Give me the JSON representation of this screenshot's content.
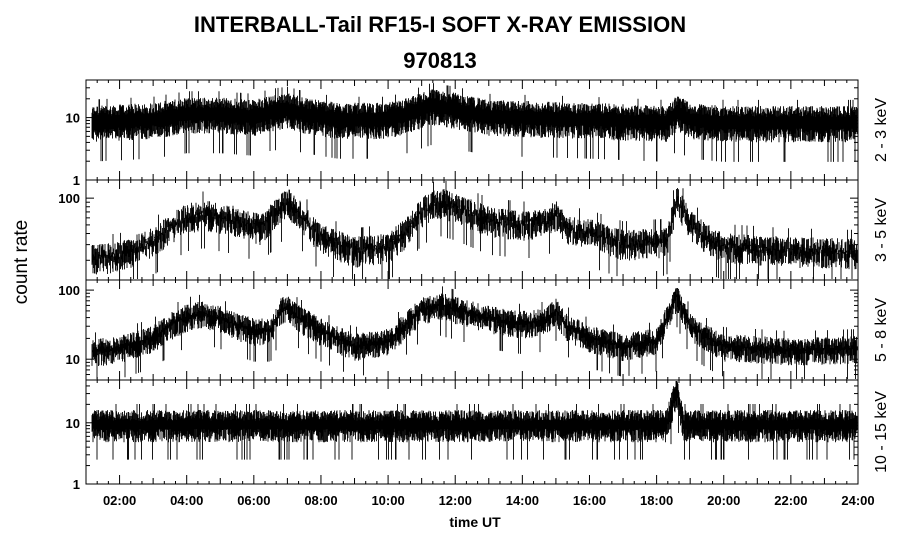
{
  "chart_data": {
    "type": "line",
    "title": "INTERBALL-Tail RF15-I SOFT X-RAY EMISSION",
    "subtitle": "970813",
    "xlabel": "time UT",
    "ylabel": "count rate",
    "x_range_hours": [
      1,
      24
    ],
    "x_ticks": [
      2,
      4,
      6,
      8,
      10,
      12,
      14,
      16,
      18,
      20,
      22,
      24
    ],
    "x_tick_labels": [
      "02:00",
      "04:00",
      "06:00",
      "08:00",
      "10:00",
      "12:00",
      "14:00",
      "16:00",
      "18:00",
      "20:00",
      "22:00",
      "24:00"
    ],
    "y_scale": "log",
    "grid": false,
    "panels": [
      {
        "band": "2 - 3 keV",
        "ylim": [
          1,
          40
        ],
        "y_tick_labels": [
          {
            "value": 1,
            "label": "1"
          },
          {
            "value": 10,
            "label": "10"
          }
        ],
        "noise_factor": 1.6,
        "envelope": [
          [
            1,
            8
          ],
          [
            3,
            9
          ],
          [
            4,
            11
          ],
          [
            5,
            11
          ],
          [
            6,
            10
          ],
          [
            6.5,
            12
          ],
          [
            7,
            13
          ],
          [
            7.5,
            11
          ],
          [
            8.5,
            9
          ],
          [
            10,
            9
          ],
          [
            10.8,
            12
          ],
          [
            11.3,
            15
          ],
          [
            12,
            13
          ],
          [
            13,
            10
          ],
          [
            16,
            9
          ],
          [
            18.3,
            8
          ],
          [
            18.6,
            12
          ],
          [
            19,
            9
          ],
          [
            20,
            8
          ],
          [
            24,
            8
          ]
        ]
      },
      {
        "band": "3 - 5 keV",
        "ylim": [
          12,
          160
        ],
        "y_tick_labels": [
          {
            "value": 100,
            "label": "100"
          }
        ],
        "noise_factor": 1.22,
        "envelope": [
          [
            1,
            20
          ],
          [
            2,
            22
          ],
          [
            3,
            32
          ],
          [
            3.5,
            45
          ],
          [
            4,
            60
          ],
          [
            4.5,
            65
          ],
          [
            5,
            60
          ],
          [
            5.5,
            55
          ],
          [
            6.2,
            45
          ],
          [
            6.8,
            75
          ],
          [
            7,
            90
          ],
          [
            7.3,
            70
          ],
          [
            8,
            35
          ],
          [
            9,
            25
          ],
          [
            10,
            28
          ],
          [
            10.5,
            40
          ],
          [
            11,
            70
          ],
          [
            11.5,
            90
          ],
          [
            12,
            80
          ],
          [
            13,
            55
          ],
          [
            14,
            50
          ],
          [
            14.7,
            52
          ],
          [
            15,
            65
          ],
          [
            15.3,
            45
          ],
          [
            16,
            40
          ],
          [
            17,
            30
          ],
          [
            18.3,
            32
          ],
          [
            18.6,
            95
          ],
          [
            19,
            50
          ],
          [
            19.5,
            35
          ],
          [
            20,
            28
          ],
          [
            22,
            25
          ],
          [
            24,
            24
          ]
        ]
      },
      {
        "band": "5 - 8 keV",
        "ylim": [
          5,
          140
        ],
        "y_tick_labels": [
          {
            "value": 10,
            "label": "10"
          },
          {
            "value": 100,
            "label": "100"
          }
        ],
        "noise_factor": 1.3,
        "envelope": [
          [
            1,
            12
          ],
          [
            2,
            14
          ],
          [
            3,
            20
          ],
          [
            3.5,
            30
          ],
          [
            4,
            40
          ],
          [
            4.5,
            45
          ],
          [
            5,
            38
          ],
          [
            5.5,
            30
          ],
          [
            6,
            25
          ],
          [
            6.5,
            25
          ],
          [
            6.8,
            50
          ],
          [
            7,
            55
          ],
          [
            7.3,
            40
          ],
          [
            8,
            25
          ],
          [
            9,
            15
          ],
          [
            10,
            18
          ],
          [
            10.5,
            30
          ],
          [
            11,
            50
          ],
          [
            11.5,
            60
          ],
          [
            12,
            52
          ],
          [
            13,
            38
          ],
          [
            14,
            32
          ],
          [
            14.7,
            35
          ],
          [
            15,
            50
          ],
          [
            15.3,
            30
          ],
          [
            16,
            20
          ],
          [
            17,
            15
          ],
          [
            18,
            18
          ],
          [
            18.6,
            80
          ],
          [
            19,
            30
          ],
          [
            19.5,
            20
          ],
          [
            20,
            15
          ],
          [
            22,
            13
          ],
          [
            24,
            14
          ]
        ]
      },
      {
        "band": "10 - 15 keV",
        "ylim": [
          1,
          50
        ],
        "y_tick_labels": [
          {
            "value": 1,
            "label": "1"
          },
          {
            "value": 10,
            "label": "10"
          }
        ],
        "noise_factor": 1.5,
        "envelope": [
          [
            1,
            9
          ],
          [
            18.3,
            9
          ],
          [
            18.6,
            35
          ],
          [
            18.8,
            9
          ],
          [
            24,
            9
          ]
        ]
      }
    ]
  }
}
